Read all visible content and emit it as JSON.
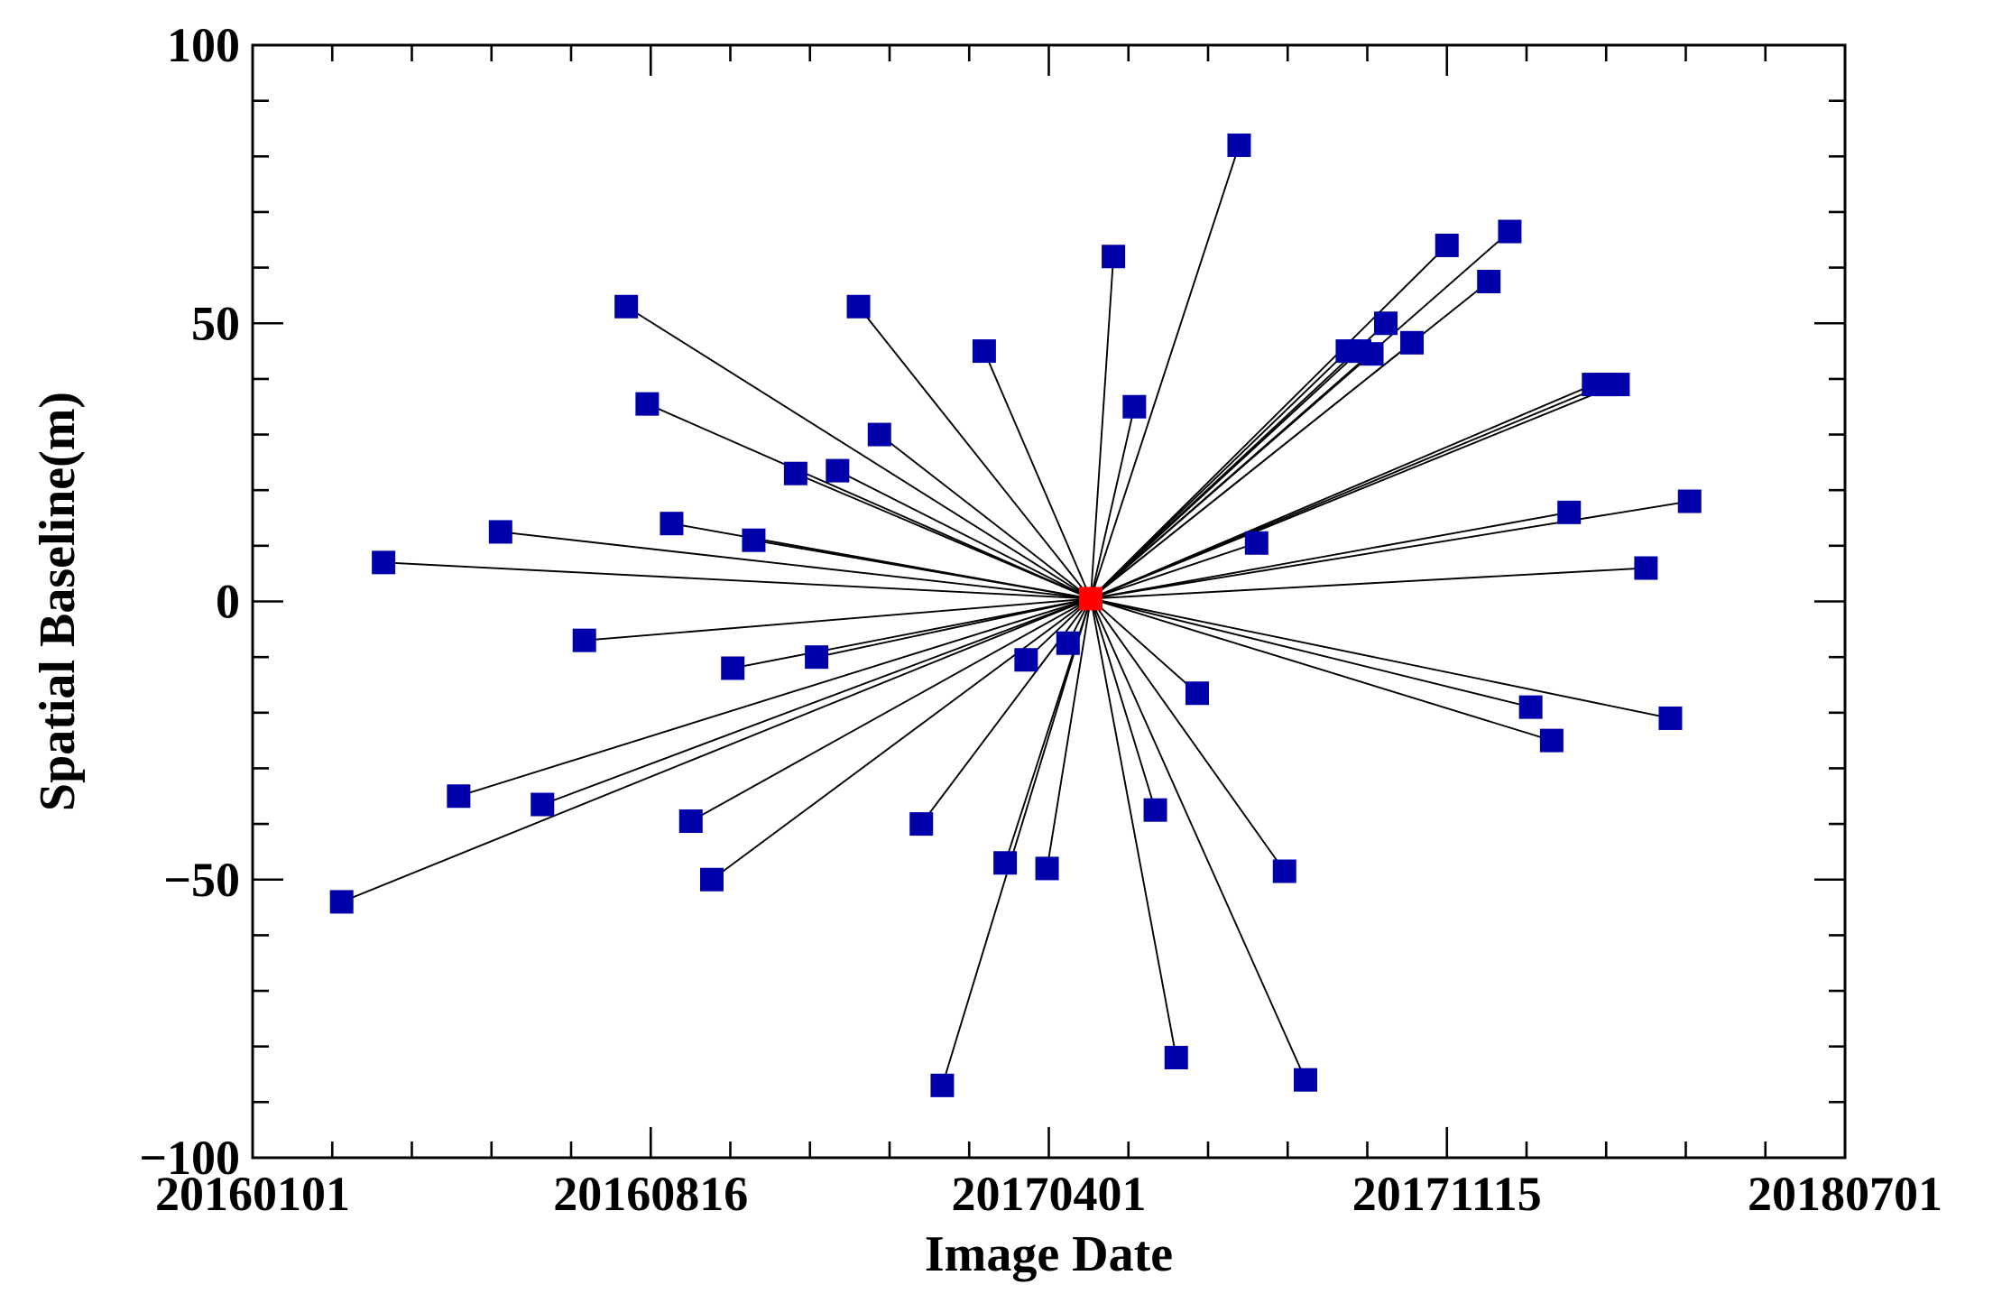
{
  "chart_data": {
    "type": "scatter",
    "title": "",
    "xlabel": "Image Date",
    "ylabel": "Spatial Baseline(m)",
    "xlim": [
      "2016-01-01",
      "2018-07-01"
    ],
    "ylim": [
      -100,
      100
    ],
    "x_ticks": [
      {
        "date": "2016-01-01",
        "label": "20160101"
      },
      {
        "date": "2016-08-16",
        "label": "20160816"
      },
      {
        "date": "2017-04-01",
        "label": "20170401"
      },
      {
        "date": "2017-11-15",
        "label": "20171115"
      },
      {
        "date": "2018-07-01",
        "label": "20180701"
      }
    ],
    "y_ticks": [
      {
        "value": 100,
        "label": "100"
      },
      {
        "value": 50,
        "label": "50"
      },
      {
        "value": 0,
        "label": "0"
      },
      {
        "value": -50,
        "label": "−50"
      },
      {
        "value": -100,
        "label": "−100"
      }
    ],
    "grid": false,
    "legend": "none",
    "marker_shape": "square",
    "master_color": "#ff0000",
    "slave_color": "#0000aa",
    "line_color": "#000000",
    "master": {
      "date": "2017-04-25",
      "baseline": 0.5
    },
    "slaves": [
      {
        "date": "2016-02-21",
        "baseline": -54
      },
      {
        "date": "2016-03-16",
        "baseline": 7
      },
      {
        "date": "2016-04-28",
        "baseline": -35
      },
      {
        "date": "2016-05-22",
        "baseline": 12.5
      },
      {
        "date": "2016-06-15",
        "baseline": -36.5
      },
      {
        "date": "2016-07-09",
        "baseline": -7
      },
      {
        "date": "2016-08-02",
        "baseline": 53
      },
      {
        "date": "2016-08-14",
        "baseline": 35.5
      },
      {
        "date": "2016-08-28",
        "baseline": 14
      },
      {
        "date": "2016-09-08",
        "baseline": -39.5
      },
      {
        "date": "2016-09-20",
        "baseline": -50
      },
      {
        "date": "2016-10-02",
        "baseline": -12
      },
      {
        "date": "2016-10-14",
        "baseline": 11
      },
      {
        "date": "2016-11-07",
        "baseline": 23
      },
      {
        "date": "2016-11-19",
        "baseline": -10
      },
      {
        "date": "2016-12-01",
        "baseline": 23.5
      },
      {
        "date": "2016-12-13",
        "baseline": 53
      },
      {
        "date": "2016-12-25",
        "baseline": 30
      },
      {
        "date": "2017-01-18",
        "baseline": -40
      },
      {
        "date": "2017-01-30",
        "baseline": -87
      },
      {
        "date": "2017-02-23",
        "baseline": 45
      },
      {
        "date": "2017-03-07",
        "baseline": -47
      },
      {
        "date": "2017-03-19",
        "baseline": -10.5
      },
      {
        "date": "2017-03-31",
        "baseline": -48
      },
      {
        "date": "2017-04-12",
        "baseline": -7.5
      },
      {
        "date": "2017-05-08",
        "baseline": 62
      },
      {
        "date": "2017-05-20",
        "baseline": 35
      },
      {
        "date": "2017-06-01",
        "baseline": -37.5
      },
      {
        "date": "2017-06-13",
        "baseline": -82
      },
      {
        "date": "2017-06-25",
        "baseline": -16.5
      },
      {
        "date": "2017-07-19",
        "baseline": 82
      },
      {
        "date": "2017-07-29",
        "baseline": 10.5
      },
      {
        "date": "2017-08-14",
        "baseline": -48.5
      },
      {
        "date": "2017-08-26",
        "baseline": -86
      },
      {
        "date": "2017-09-19",
        "baseline": 45
      },
      {
        "date": "2017-09-26",
        "baseline": 45
      },
      {
        "date": "2017-10-03",
        "baseline": 44.5
      },
      {
        "date": "2017-10-11",
        "baseline": 50
      },
      {
        "date": "2017-10-26",
        "baseline": 46.5
      },
      {
        "date": "2017-11-15",
        "baseline": 64
      },
      {
        "date": "2017-12-09",
        "baseline": 57.5
      },
      {
        "date": "2017-12-21",
        "baseline": 66.5
      },
      {
        "date": "2018-01-02",
        "baseline": -19
      },
      {
        "date": "2018-01-14",
        "baseline": -25
      },
      {
        "date": "2018-01-24",
        "baseline": 16
      },
      {
        "date": "2018-02-07",
        "baseline": 39
      },
      {
        "date": "2018-02-14",
        "baseline": 39
      },
      {
        "date": "2018-02-21",
        "baseline": 39
      },
      {
        "date": "2018-03-09",
        "baseline": 6
      },
      {
        "date": "2018-03-23",
        "baseline": -21
      },
      {
        "date": "2018-04-03",
        "baseline": 18
      }
    ]
  }
}
